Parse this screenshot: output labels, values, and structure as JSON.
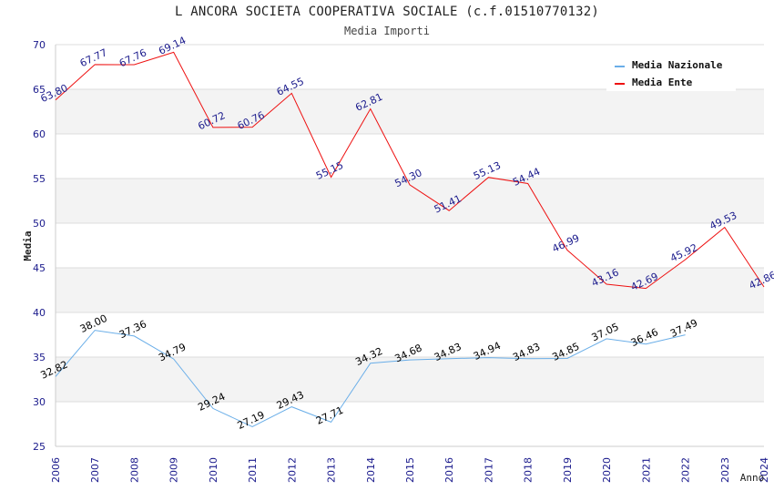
{
  "chart_data": {
    "type": "line",
    "title": "L ANCORA SOCIETA COOPERATIVA SOCIALE (c.f.01510770132)",
    "subtitle": "Media Importi",
    "xlabel": "Anno",
    "ylabel": "Media",
    "ylim": [
      25,
      70
    ],
    "yticks": [
      "25",
      "30",
      "35",
      "40",
      "45",
      "50",
      "55",
      "60",
      "65",
      "70"
    ],
    "x": [
      "2006",
      "2007",
      "2008",
      "2009",
      "2010",
      "2011",
      "2012",
      "2013",
      "2014",
      "2015",
      "2016",
      "2017",
      "2018",
      "2019",
      "2020",
      "2021",
      "2022",
      "2023",
      "2024"
    ],
    "grid": true,
    "legend_position": "top-right",
    "series": [
      {
        "name": "Media Nazionale",
        "color": "#6aaee8",
        "label_color": "#000000",
        "values": [
          32.82,
          38.0,
          37.36,
          34.79,
          29.24,
          27.19,
          29.43,
          27.71,
          34.32,
          34.68,
          34.83,
          34.94,
          34.83,
          34.85,
          37.05,
          36.46,
          37.49,
          null,
          null
        ],
        "labels": [
          "32.82",
          "38.00",
          "37.36",
          "34.79",
          "29.24",
          "27.19",
          "29.43",
          "27.71",
          "34.32",
          "34.68",
          "34.83",
          "34.94",
          "34.83",
          "34.85",
          "37.05",
          "36.46",
          "37.49",
          "",
          ""
        ]
      },
      {
        "name": "Media Ente",
        "color": "#ee1111",
        "label_color": "#1a1a8c",
        "values": [
          63.8,
          67.77,
          67.76,
          69.14,
          60.72,
          60.76,
          64.55,
          55.15,
          62.81,
          54.3,
          51.41,
          55.13,
          54.44,
          46.99,
          43.16,
          42.69,
          45.92,
          49.53,
          42.86
        ],
        "labels": [
          "63.80",
          "67.77",
          "67.76",
          "69.14",
          "60.72",
          "60.76",
          "64.55",
          "55.15",
          "62.81",
          "54.30",
          "51.41",
          "55.13",
          "54.44",
          "46.99",
          "43.16",
          "42.69",
          "45.92",
          "49.53",
          "42.86"
        ]
      }
    ]
  }
}
